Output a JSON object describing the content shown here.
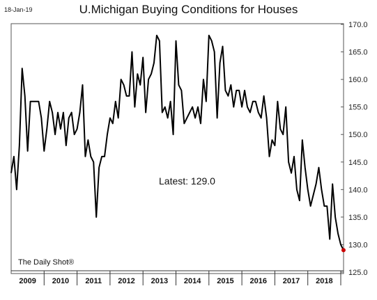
{
  "header": {
    "date": "18-Jan-19"
  },
  "chart_data": {
    "type": "line",
    "title": "U.Michigan Buying Conditions for Houses",
    "ylim": [
      125,
      170
    ],
    "yticks": [
      125,
      130,
      135,
      140,
      145,
      150,
      155,
      160,
      165,
      170
    ],
    "ytick_labels": [
      "125.0",
      "130.0",
      "135.0",
      "140.0",
      "145.0",
      "150.0",
      "155.0",
      "160.0",
      "165.0",
      "170.0"
    ],
    "years": [
      "2009",
      "2010",
      "2011",
      "2012",
      "2013",
      "2014",
      "2015",
      "2016",
      "2017",
      "2018"
    ],
    "x_start": 2009.0,
    "x_end": 2019.0,
    "grid": false,
    "annotation": "Latest:  129.0",
    "source": "The Daily Shot®",
    "latest_marker_color": "#cc0000",
    "line_color": "#000000",
    "series": [
      {
        "values": [
          143,
          146,
          140,
          148,
          162,
          157,
          147,
          156,
          156,
          156,
          156,
          153,
          147,
          151,
          156,
          154,
          150,
          154,
          151,
          154,
          148,
          153,
          154,
          150,
          151,
          154,
          159,
          146,
          149,
          146,
          145,
          135,
          144,
          146,
          146,
          150,
          153,
          152,
          156,
          153,
          160,
          159,
          157,
          157,
          165,
          155,
          161,
          159,
          164,
          154,
          160,
          161,
          163,
          168,
          167,
          154,
          155,
          153,
          156,
          150,
          167,
          159,
          158,
          152,
          153,
          154,
          155,
          153,
          155,
          152,
          160,
          156,
          168,
          167,
          165,
          153,
          163,
          166,
          158,
          157,
          159,
          155,
          158,
          158,
          155,
          158,
          155,
          154,
          156,
          156,
          154,
          153,
          157,
          153,
          146,
          149,
          148,
          156,
          151,
          150,
          155,
          145,
          143,
          146,
          140,
          138,
          149,
          144,
          140,
          137,
          139,
          141,
          144,
          140,
          137,
          137,
          131,
          141,
          135,
          132,
          130,
          129
        ]
      }
    ]
  }
}
